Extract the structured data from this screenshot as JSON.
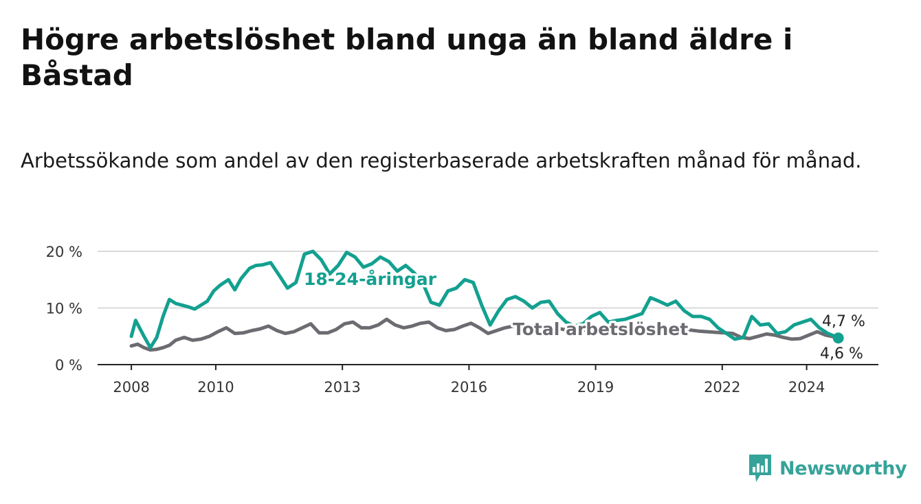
{
  "title": "Högre arbetslöshet bland unga än bland äldre i Båstad",
  "subtitle": "Arbetssökande som andel av den registerbaserade arbetskraften månad för månad.",
  "brand": {
    "name": "Newsworthy",
    "icon": "bar-chart-speech-bubble-icon"
  },
  "colors": {
    "youth": "#13a090",
    "total": "#6c6b71",
    "grid": "#d9d9d9",
    "brand": "#36a39a"
  },
  "chart_data": {
    "type": "line",
    "title": "Högre arbetslöshet bland unga än bland äldre i Båstad",
    "xlabel": "",
    "ylabel": "",
    "xlim": [
      2007.2,
      2025.7
    ],
    "ylim": [
      0,
      20
    ],
    "x_ticks": [
      2008,
      2010,
      2013,
      2016,
      2019,
      2022,
      2024
    ],
    "x_tick_labels": [
      "2008",
      "2010",
      "2013",
      "2016",
      "2019",
      "2022",
      "2024"
    ],
    "y_ticks": [
      0,
      10,
      20
    ],
    "y_tick_labels": [
      "0 %",
      "10 %",
      "20 %"
    ],
    "series": [
      {
        "name": "18-24-åringar",
        "label": "18-24-åringar",
        "color": "#13a090",
        "x": [
          2008.0,
          2008.1,
          2008.3,
          2008.45,
          2008.6,
          2008.75,
          2008.9,
          2009.05,
          2009.2,
          2009.35,
          2009.5,
          2009.65,
          2009.8,
          2009.95,
          2010.1,
          2010.3,
          2010.45,
          2010.6,
          2010.8,
          2010.95,
          2011.1,
          2011.3,
          2011.5,
          2011.7,
          2011.9,
          2012.1,
          2012.3,
          2012.5,
          2012.7,
          2012.9,
          2013.1,
          2013.3,
          2013.5,
          2013.7,
          2013.9,
          2014.1,
          2014.3,
          2014.5,
          2014.7,
          2014.9,
          2015.1,
          2015.3,
          2015.5,
          2015.7,
          2015.9,
          2016.1,
          2016.3,
          2016.5,
          2016.7,
          2016.9,
          2017.1,
          2017.3,
          2017.5,
          2017.7,
          2017.9,
          2018.1,
          2018.3,
          2018.5,
          2018.7,
          2018.9,
          2019.1,
          2019.3,
          2019.5,
          2019.7,
          2019.9,
          2020.1,
          2020.3,
          2020.5,
          2020.7,
          2020.9,
          2021.1,
          2021.3,
          2021.5,
          2021.7,
          2021.9,
          2022.1,
          2022.3,
          2022.5,
          2022.7,
          2022.9,
          2023.1,
          2023.3,
          2023.5,
          2023.7,
          2023.9,
          2024.1,
          2024.3,
          2024.5,
          2024.7,
          2024.75
        ],
        "values": [
          5.0,
          7.8,
          5.0,
          3.0,
          4.8,
          8.5,
          11.5,
          10.8,
          10.5,
          10.2,
          9.8,
          10.5,
          11.2,
          13.0,
          14.0,
          15.0,
          13.2,
          15.2,
          17.0,
          17.5,
          17.6,
          18.0,
          15.8,
          13.5,
          14.5,
          19.5,
          20.0,
          18.5,
          16.0,
          17.5,
          19.8,
          19.0,
          17.2,
          17.8,
          19.0,
          18.2,
          16.5,
          17.5,
          16.2,
          14.5,
          11.0,
          10.5,
          13.0,
          13.5,
          15.0,
          14.5,
          10.5,
          7.0,
          9.5,
          11.5,
          12.0,
          11.2,
          10.0,
          11.0,
          11.2,
          9.0,
          7.5,
          6.8,
          7.2,
          8.5,
          9.2,
          7.5,
          7.8,
          8.0,
          8.5,
          9.0,
          11.8,
          11.2,
          10.5,
          11.2,
          9.5,
          8.5,
          8.5,
          8.0,
          6.5,
          5.5,
          4.5,
          4.8,
          8.5,
          7.0,
          7.2,
          5.5,
          5.8,
          7.0,
          7.5,
          8.0,
          6.5,
          5.5,
          4.9,
          4.7
        ]
      },
      {
        "name": "Total arbetslöshet",
        "label": "Total arbetslöshet",
        "color": "#6c6b71",
        "x": [
          2008.0,
          2008.15,
          2008.3,
          2008.45,
          2008.6,
          2008.75,
          2008.9,
          2009.05,
          2009.25,
          2009.45,
          2009.65,
          2009.85,
          2010.05,
          2010.25,
          2010.45,
          2010.65,
          2010.85,
          2011.05,
          2011.25,
          2011.45,
          2011.65,
          2011.85,
          2012.05,
          2012.25,
          2012.45,
          2012.65,
          2012.85,
          2013.05,
          2013.25,
          2013.45,
          2013.65,
          2013.85,
          2014.05,
          2014.25,
          2014.45,
          2014.65,
          2014.85,
          2015.05,
          2015.25,
          2015.45,
          2015.65,
          2015.85,
          2016.05,
          2016.25,
          2016.45,
          2016.65,
          2016.85,
          2017.05,
          2017.25,
          2017.45,
          2017.65,
          2017.85,
          2018.05,
          2018.25,
          2018.45,
          2018.65,
          2018.85,
          2019.05,
          2019.25,
          2019.45,
          2019.65,
          2019.85,
          2020.05,
          2020.25,
          2020.45,
          2020.65,
          2020.85,
          2021.05,
          2021.25,
          2021.45,
          2021.65,
          2021.85,
          2022.05,
          2022.25,
          2022.45,
          2022.65,
          2022.85,
          2023.05,
          2023.25,
          2023.45,
          2023.65,
          2023.85,
          2024.05,
          2024.25,
          2024.45,
          2024.65,
          2024.75
        ],
        "values": [
          3.3,
          3.6,
          3.0,
          2.6,
          2.7,
          3.0,
          3.4,
          4.3,
          4.8,
          4.3,
          4.5,
          5.0,
          5.8,
          6.5,
          5.5,
          5.6,
          6.0,
          6.3,
          6.8,
          6.0,
          5.5,
          5.8,
          6.5,
          7.2,
          5.6,
          5.6,
          6.2,
          7.2,
          7.5,
          6.5,
          6.5,
          7.0,
          8.0,
          7.0,
          6.5,
          6.8,
          7.3,
          7.5,
          6.5,
          6.0,
          6.2,
          6.8,
          7.3,
          6.5,
          5.5,
          6.0,
          6.5,
          6.8,
          7.0,
          6.8,
          7.0,
          6.8,
          6.5,
          6.2,
          6.3,
          6.0,
          6.2,
          6.4,
          6.5,
          6.2,
          6.3,
          6.8,
          6.5,
          6.5,
          6.7,
          6.4,
          6.3,
          6.0,
          6.1,
          5.9,
          5.8,
          5.7,
          5.6,
          5.5,
          4.8,
          4.6,
          5.0,
          5.4,
          5.2,
          4.8,
          4.5,
          4.6,
          5.2,
          5.8,
          5.2,
          4.9,
          4.6
        ]
      }
    ],
    "end_labels": {
      "youth": "4,7 %",
      "total": "4,6 %"
    }
  }
}
